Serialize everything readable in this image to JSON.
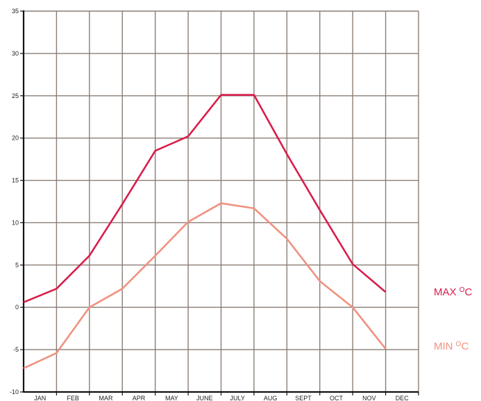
{
  "chart_data": {
    "type": "line",
    "title": "",
    "xlabel": "",
    "ylabel": "",
    "categories": [
      "JAN",
      "FEB",
      "MAR",
      "APR",
      "MAY",
      "JUNE",
      "JULY",
      "AUG",
      "SEPT",
      "OCT",
      "NOV",
      "DEC"
    ],
    "ylim": [
      -10,
      35
    ],
    "yticks": [
      "35",
      "30",
      "25",
      "20",
      "15",
      "10",
      "5",
      "0",
      "-5",
      "-10"
    ],
    "grid": true,
    "legend_position": "right",
    "series": [
      {
        "name": "MAX °C",
        "label_main": "MAX ",
        "label_sup": "O",
        "label_unit": "C",
        "color": "#d81d4a",
        "values": [
          0.6,
          2.2,
          6.1,
          12.2,
          18.5,
          20.2,
          25.1,
          25.1,
          18.1,
          11.5,
          5.1,
          1.8
        ]
      },
      {
        "name": "MIN °C",
        "label_main": "MIN ",
        "label_sup": "O",
        "label_unit": "C",
        "color": "#f0917f",
        "values": [
          -7.2,
          -5.4,
          0,
          2.2,
          6.1,
          10.1,
          12.3,
          11.7,
          8.1,
          3.1,
          0,
          -4.9
        ]
      }
    ]
  }
}
